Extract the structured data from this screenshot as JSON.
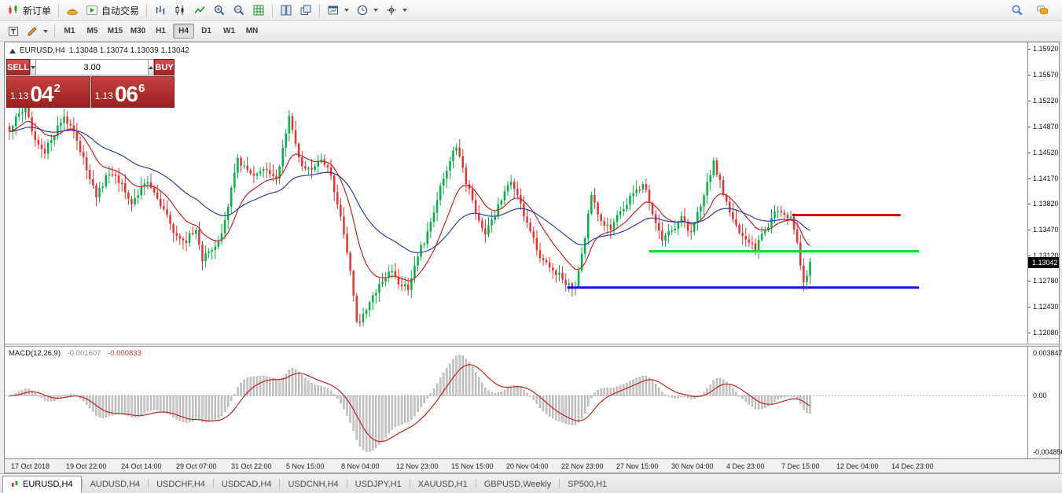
{
  "toolbar_top": {
    "new_order_label": "新订单",
    "autotrading_label": "自动交易"
  },
  "icons": {
    "top_toolbar": [
      "new-order-icon",
      "gold-icon",
      "autotrading-icon",
      "bar-chart-icon",
      "candlestick-chart-icon",
      "line-chart-icon",
      "zoom-in-icon",
      "zoom-out-icon",
      "indicators-icon",
      "tile-windows-icon",
      "cascade-windows-icon",
      "new-chart-icon",
      "periods-icon",
      "crosshair-icon",
      "search-icon",
      "chat-icon"
    ],
    "periods_toolbar": [
      "templates-icon",
      "draw-tools-icon"
    ],
    "shapes": "inline-svg"
  },
  "timeframes": {
    "items": [
      "M1",
      "M5",
      "M15",
      "M30",
      "H1",
      "H4",
      "D1",
      "W1",
      "MN"
    ],
    "active": "H4"
  },
  "chart": {
    "title": "EURUSD,H4",
    "ohlc_text": "1.13048 1.13074 1.13039 1.13042"
  },
  "trade_panel": {
    "sell_label": "SELL",
    "buy_label": "BUY",
    "volume": "3.00",
    "bid": {
      "prefix": "1.13",
      "big": "04",
      "sup": "2"
    },
    "ask": {
      "prefix": "1.13",
      "big": "06",
      "sup": "6"
    }
  },
  "price_axis": {
    "ticks": [
      "1.15920",
      "1.15570",
      "1.15220",
      "1.14870",
      "1.14520",
      "1.14170",
      "1.13820",
      "1.13470",
      "1.13120",
      "1.12780",
      "1.12430",
      "1.12080"
    ],
    "current_price": "1.13042"
  },
  "macd_panel": {
    "label": "MACD(12,26,9)",
    "value_main": "-0.001607",
    "value_signal": "-0.000833",
    "axis_top": "0.003847",
    "axis_zero": "0.00",
    "axis_bottom": "-0.004856"
  },
  "time_axis": {
    "labels": [
      "17 Oct 2018",
      "19 Oct 22:00",
      "24 Oct 14:00",
      "29 Oct 07:00",
      "31 Oct 22:00",
      "5 Nov 15:00",
      "8 Nov 04:00",
      "12 Nov 23:00",
      "15 Nov 15:00",
      "20 Nov 04:00",
      "22 Nov 23:00",
      "27 Nov 15:00",
      "30 Nov 04:00",
      "4 Dec 23:00",
      "7 Dec 15:00",
      "12 Dec 04:00",
      "14 Dec 23:00"
    ]
  },
  "tabs": {
    "items": [
      "EURUSD,H4",
      "AUDUSD,H4",
      "USDCHF,H4",
      "USDCAD,H4",
      "USDCNH,H4",
      "USDJPY,H1",
      "XAUUSD,H1",
      "GBPUSD,Weekly",
      "SP500,H1"
    ],
    "active": "EURUSD,H4"
  },
  "chart_data": {
    "type": "candlestick",
    "symbol": "EURUSD",
    "timeframe": "H4",
    "title": "EURUSD,H4",
    "last_ohlc": {
      "open": 1.13048,
      "high": 1.13074,
      "low": 1.13039,
      "close": 1.13042
    },
    "ylim": [
      1.1208,
      1.1592
    ],
    "y_ticks": [
      1.1592,
      1.1557,
      1.1522,
      1.1487,
      1.1452,
      1.1417,
      1.1382,
      1.1347,
      1.1312,
      1.1278,
      1.1243,
      1.1208
    ],
    "x_labels": [
      "17 Oct 2018",
      "19 Oct 22:00",
      "24 Oct 14:00",
      "29 Oct 07:00",
      "31 Oct 22:00",
      "5 Nov 15:00",
      "8 Nov 04:00",
      "12 Nov 23:00",
      "15 Nov 15:00",
      "20 Nov 04:00",
      "22 Nov 23:00",
      "27 Nov 15:00",
      "30 Nov 04:00",
      "4 Dec 23:00",
      "7 Dec 15:00",
      "12 Dec 04:00",
      "14 Dec 23:00"
    ],
    "n_candles": 250,
    "candle_region": 0.786,
    "noise_amp": 0.0009,
    "wick_amp": 0.0011,
    "close_waypoints": [
      [
        0,
        1.148
      ],
      [
        2,
        1.1496
      ],
      [
        5,
        1.1512
      ],
      [
        8,
        1.1468
      ],
      [
        11,
        1.1452
      ],
      [
        14,
        1.1478
      ],
      [
        17,
        1.1502
      ],
      [
        20,
        1.1476
      ],
      [
        23,
        1.1442
      ],
      [
        27,
        1.1392
      ],
      [
        31,
        1.1426
      ],
      [
        35,
        1.1406
      ],
      [
        38,
        1.1382
      ],
      [
        42,
        1.1413
      ],
      [
        46,
        1.139
      ],
      [
        51,
        1.1346
      ],
      [
        55,
        1.1333
      ],
      [
        58,
        1.1348
      ],
      [
        60,
        1.1308
      ],
      [
        63,
        1.1318
      ],
      [
        66,
        1.1338
      ],
      [
        71,
        1.1441
      ],
      [
        75,
        1.1419
      ],
      [
        79,
        1.1429
      ],
      [
        83,
        1.1416
      ],
      [
        87,
        1.1497
      ],
      [
        90,
        1.1441
      ],
      [
        94,
        1.1426
      ],
      [
        97,
        1.1444
      ],
      [
        100,
        1.1421
      ],
      [
        103,
        1.1361
      ],
      [
        106,
        1.1291
      ],
      [
        108,
        1.1219
      ],
      [
        111,
        1.1241
      ],
      [
        114,
        1.1263
      ],
      [
        118,
        1.1293
      ],
      [
        121,
        1.1276
      ],
      [
        124,
        1.1269
      ],
      [
        127,
        1.1313
      ],
      [
        130,
        1.1341
      ],
      [
        133,
        1.1389
      ],
      [
        136,
        1.1429
      ],
      [
        139,
        1.1463
      ],
      [
        142,
        1.1411
      ],
      [
        145,
        1.1373
      ],
      [
        148,
        1.1341
      ],
      [
        151,
        1.1369
      ],
      [
        154,
        1.1399
      ],
      [
        156,
        1.1413
      ],
      [
        159,
        1.1379
      ],
      [
        162,
        1.1349
      ],
      [
        165,
        1.1311
      ],
      [
        168,
        1.1296
      ],
      [
        171,
        1.1286
      ],
      [
        174,
        1.1271
      ],
      [
        176,
        1.1266
      ],
      [
        178,
        1.1311
      ],
      [
        181,
        1.1393
      ],
      [
        184,
        1.1361
      ],
      [
        187,
        1.1346
      ],
      [
        190,
        1.1371
      ],
      [
        193,
        1.1389
      ],
      [
        197,
        1.1411
      ],
      [
        200,
        1.1371
      ],
      [
        203,
        1.1331
      ],
      [
        206,
        1.1346
      ],
      [
        209,
        1.1361
      ],
      [
        212,
        1.1341
      ],
      [
        215,
        1.1381
      ],
      [
        219,
        1.1439
      ],
      [
        222,
        1.1396
      ],
      [
        225,
        1.1361
      ],
      [
        228,
        1.1339
      ],
      [
        232,
        1.1321
      ],
      [
        235,
        1.1346
      ],
      [
        238,
        1.1371
      ],
      [
        241,
        1.1366
      ],
      [
        243,
        1.1369
      ],
      [
        245,
        1.1331
      ],
      [
        247,
        1.1272
      ],
      [
        249,
        1.13042
      ]
    ],
    "colors": {
      "up": "#00b244",
      "down": "#e83232",
      "ma_fast": "#c42424",
      "ma_slow": "#2f3f9e",
      "hist": "#c9c9c9",
      "macd_signal": "#c42424"
    },
    "ma_fast_period": 13,
    "ma_slow_period": 38,
    "hlines": [
      {
        "name": "red-resistance",
        "price": 1.1367,
        "color": "#dd0000",
        "from": 0.77,
        "to": 0.876
      },
      {
        "name": "green-support",
        "price": 1.1318,
        "color": "#00dd22",
        "from": 0.63,
        "to": 0.894
      },
      {
        "name": "blue-support",
        "price": 1.1269,
        "color": "#1111dd",
        "from": 0.55,
        "to": 0.894
      }
    ],
    "macd": {
      "fast": 12,
      "slow": 26,
      "signal": 9,
      "ylim": [
        -0.004856,
        0.003847
      ],
      "last_main": -0.001607,
      "last_signal": -0.000833
    }
  }
}
